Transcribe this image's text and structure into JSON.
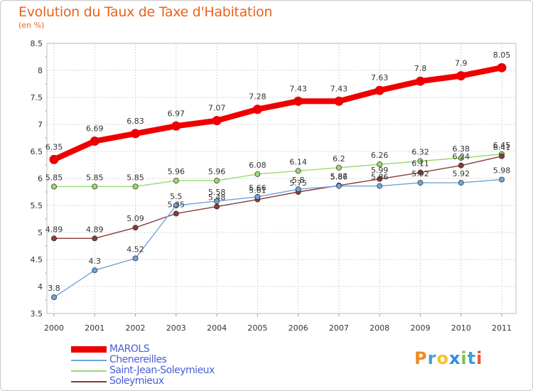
{
  "title": "Evolution du Taux de Taxe d'Habitation",
  "subtitle": "(en %)",
  "logo": {
    "letters": [
      "P",
      "r",
      "o",
      "x",
      "i",
      "t",
      "i"
    ],
    "colors": [
      "#f08a24",
      "#3aa0e0",
      "#f2c230",
      "#2f8fe0",
      "#7cc242",
      "#3aa0e0",
      "#e85b2a"
    ]
  },
  "chart_data": {
    "type": "line",
    "x": [
      2000,
      2001,
      2002,
      2003,
      2004,
      2005,
      2006,
      2007,
      2008,
      2009,
      2010,
      2011
    ],
    "ylim": [
      3.5,
      8.5
    ],
    "yticks": [
      "3.5",
      "4",
      "4.5",
      "5",
      "5.5",
      "6",
      "6.5",
      "7",
      "7.5",
      "8",
      "8.5"
    ],
    "grid": true,
    "legend_position": "bottom-left",
    "series": [
      {
        "name": "MAROLS",
        "color": "#ee0000",
        "values": [
          6.35,
          6.69,
          6.83,
          6.97,
          7.07,
          7.28,
          7.43,
          7.43,
          7.63,
          7.8,
          7.9,
          8.05
        ],
        "labels": [
          "6.35",
          "6.69",
          "6.83",
          "6.97",
          "7.07",
          "7.28",
          "7.43",
          "7.43",
          "7.63",
          "7.8",
          "7.9",
          "8.05"
        ]
      },
      {
        "name": "Chenereilles",
        "color": "#6fa3d8",
        "values": [
          3.8,
          4.3,
          4.52,
          5.5,
          5.58,
          5.66,
          5.8,
          5.86,
          5.86,
          5.92,
          5.92,
          5.98
        ],
        "labels": [
          "3.8",
          "4.3",
          "4.52",
          "5.5",
          "5.58",
          "5.66",
          "5.8",
          "5.86",
          "5.86",
          "5.92",
          "5.92",
          "5.98"
        ]
      },
      {
        "name": "Saint-Jean-Soleymieux",
        "color": "#99d96f",
        "values": [
          5.85,
          5.85,
          5.85,
          5.96,
          5.96,
          6.08,
          6.14,
          6.2,
          6.26,
          6.32,
          6.38,
          6.45
        ],
        "labels": [
          "5.85",
          "5.85",
          "5.85",
          "5.96",
          "5.96",
          "6.08",
          "6.14",
          "6.2",
          "6.26",
          "6.32",
          "6.38",
          "6.45"
        ]
      },
      {
        "name": "Soleymieux",
        "color": "#8b3a3a",
        "values": [
          4.89,
          4.89,
          5.09,
          5.35,
          5.48,
          5.61,
          5.75,
          5.87,
          5.99,
          6.11,
          6.24,
          6.41
        ],
        "labels": [
          "4.89",
          "4.89",
          "5.09",
          "5.35",
          "5.48",
          "5.61",
          "5.75",
          "5.87",
          "5.99",
          "6.11",
          "6.24",
          "6.41"
        ]
      }
    ]
  }
}
